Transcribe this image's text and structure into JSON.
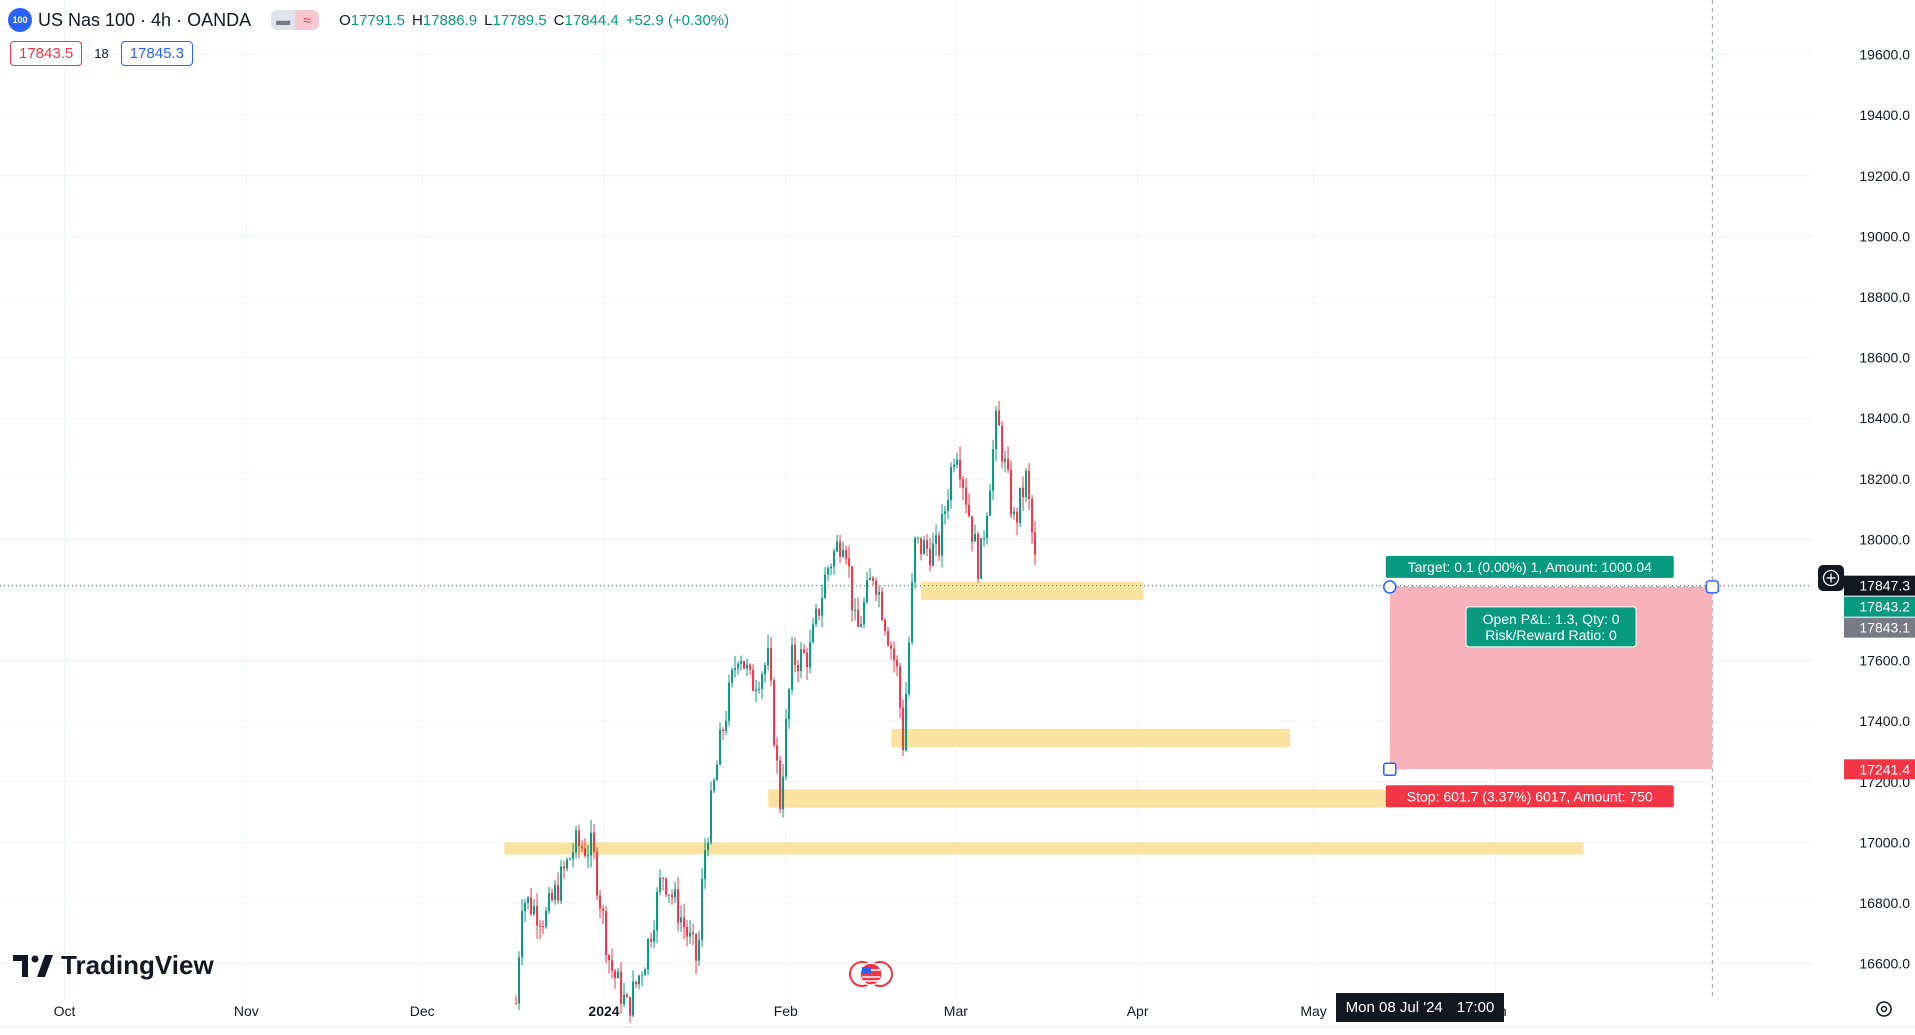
{
  "header": {
    "symbol_logo": "100",
    "title": "US Nas 100 · 4h · OANDA",
    "toggle_left_icon": "minus-icon",
    "toggle_right_icon": "wave-icon",
    "open_label": "O",
    "open": "17791.5",
    "high_label": "H",
    "high": "17886.9",
    "low_label": "L",
    "low": "17789.5",
    "close_label": "C",
    "close": "17844.4",
    "change": "+52.9 (+0.30%)"
  },
  "trade": {
    "sell_price": "17843.5",
    "spread": "18",
    "buy_price": "17845.3"
  },
  "brand": {
    "logo_text": "TradingView"
  },
  "cursor": {
    "date": "Mon 08 Jul '24",
    "time": "17:00"
  },
  "chart_data": {
    "type": "candlestick",
    "symbol": "US Nas 100",
    "interval": "4h",
    "y_ticks": [
      "19600.0",
      "19400.0",
      "19200.0",
      "19000.0",
      "18800.0",
      "18600.0",
      "18400.0",
      "18200.0",
      "18000.0",
      "17600.0",
      "17400.0",
      "17200.0",
      "17000.0",
      "16800.0",
      "16600.0"
    ],
    "x_ticks": [
      "Oct",
      "Nov",
      "Dec",
      "2024",
      "Feb",
      "Mar",
      "Apr",
      "May",
      "Jun"
    ],
    "ylim": [
      16480,
      19780
    ],
    "xlim": [
      "2023-09-20",
      "2024-07-25"
    ],
    "current_price": "17847.3",
    "bid_price": "17843.2",
    "ask_price": "17843.1",
    "stop_price": "17241.4",
    "price_path": [
      {
        "date": "2023-12-17",
        "price": 16470
      },
      {
        "date": "2023-12-18",
        "price": 16820
      },
      {
        "date": "2023-12-22",
        "price": 16750
      },
      {
        "date": "2023-12-27",
        "price": 16990
      },
      {
        "date": "2023-12-30",
        "price": 16980
      },
      {
        "date": "2024-01-02",
        "price": 16600
      },
      {
        "date": "2024-01-05",
        "price": 16450
      },
      {
        "date": "2024-01-08",
        "price": 16620
      },
      {
        "date": "2024-01-11",
        "price": 16900
      },
      {
        "date": "2024-01-14",
        "price": 16760
      },
      {
        "date": "2024-01-17",
        "price": 16600
      },
      {
        "date": "2024-01-18",
        "price": 16950
      },
      {
        "date": "2024-01-21",
        "price": 17350
      },
      {
        "date": "2024-01-24",
        "price": 17650
      },
      {
        "date": "2024-01-26",
        "price": 17520
      },
      {
        "date": "2024-01-29",
        "price": 17600
      },
      {
        "date": "2024-01-31",
        "price": 17130
      },
      {
        "date": "2024-02-02",
        "price": 17600
      },
      {
        "date": "2024-02-05",
        "price": 17620
      },
      {
        "date": "2024-02-08",
        "price": 17900
      },
      {
        "date": "2024-02-11",
        "price": 18030
      },
      {
        "date": "2024-02-13",
        "price": 17680
      },
      {
        "date": "2024-02-16",
        "price": 17900
      },
      {
        "date": "2024-02-20",
        "price": 17560
      },
      {
        "date": "2024-02-21",
        "price": 17330
      },
      {
        "date": "2024-02-23",
        "price": 17980
      },
      {
        "date": "2024-02-27",
        "price": 17960
      },
      {
        "date": "2024-03-01",
        "price": 18330
      },
      {
        "date": "2024-03-05",
        "price": 17900
      },
      {
        "date": "2024-03-08",
        "price": 18400
      },
      {
        "date": "2024-03-11",
        "price": 18050
      },
      {
        "date": "2024-03-13",
        "price": 18200
      },
      {
        "date": "2024-03-15",
        "price": 17830
      }
    ],
    "zones": [
      {
        "label": "zone-1",
        "from": "2024-02-24",
        "to": "2024-04-02",
        "low": 17800,
        "high": 17860
      },
      {
        "label": "zone-2",
        "from": "2024-02-19",
        "to": "2024-04-27",
        "low": 17315,
        "high": 17375
      },
      {
        "label": "zone-3",
        "from": "2024-01-29",
        "to": "2024-05-14",
        "low": 17115,
        "high": 17175
      },
      {
        "label": "zone-4",
        "from": "2023-12-15",
        "to": "2024-06-16",
        "low": 16960,
        "high": 17000
      }
    ],
    "position": {
      "type": "short",
      "start": "2024-05-14",
      "end": "2024-07-08",
      "entry": 17843.2,
      "target": 17843.1,
      "stop": 17241.4,
      "target_label": "Target: 0.1 (0.00%) 1, Amount: 1000.04",
      "stop_label": "Stop: 601.7 (3.37%) 6017, Amount: 750",
      "pnl_label": "Open P&L: 1.3, Qty: 0",
      "rr_label": "Risk/Reward Ratio: 0"
    },
    "colors": {
      "up": "#089981",
      "down": "#f23645",
      "zone": "#fbe2a0",
      "stop_fill": "#f8b2bb",
      "target": "#089981",
      "stop": "#f23645",
      "axis_text": "#131722",
      "grid": "#f0f3fa"
    }
  }
}
